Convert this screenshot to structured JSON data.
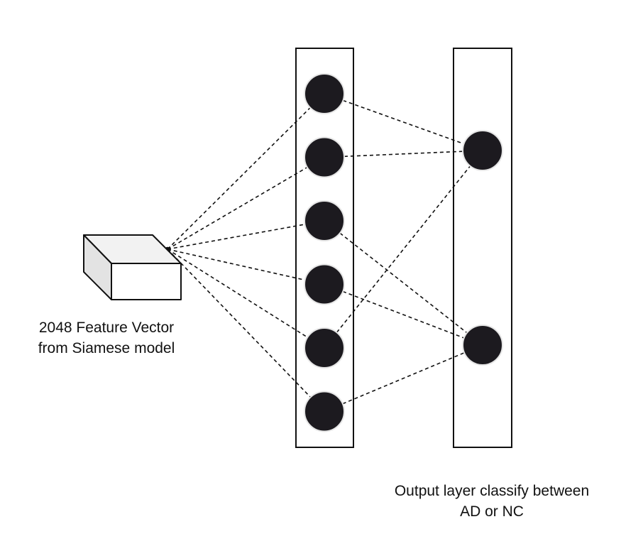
{
  "labels": {
    "input_line1": "2048 Feature Vector",
    "input_line2": "from Siamese model",
    "output_line1": "Output layer classify between",
    "output_line2": "AD or NC"
  },
  "network": {
    "hidden_neurons": 6,
    "output_neurons": 2,
    "hidden_to_output_edges": [
      [
        0,
        0
      ],
      [
        1,
        0
      ],
      [
        2,
        1
      ],
      [
        3,
        1
      ],
      [
        4,
        0
      ],
      [
        5,
        1
      ]
    ]
  },
  "colors": {
    "neuron_fill": "#1c1a1f",
    "neuron_stroke": "#e6e6e6",
    "line": "#111111",
    "box_front": "#ffffff",
    "box_top": "#f2f2f2",
    "box_side": "#e3e3e3"
  }
}
